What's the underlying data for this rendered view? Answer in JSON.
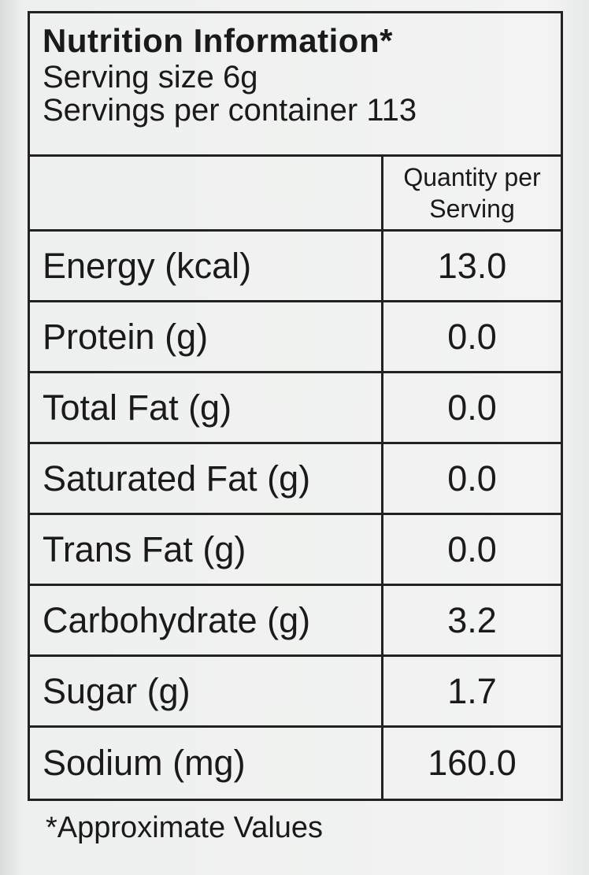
{
  "header": {
    "title": "Nutrition Information*",
    "serving_size": "Serving size 6g",
    "servings": "Servings per container 113"
  },
  "table": {
    "column_header": "Quantity per Serving",
    "rows": [
      [
        "Energy (kcal)",
        "13.0"
      ],
      [
        "Protein (g)",
        "0.0"
      ],
      [
        "Total Fat (g)",
        "0.0"
      ],
      [
        "Saturated Fat (g)",
        "0.0"
      ],
      [
        "Trans Fat (g)",
        "0.0"
      ],
      [
        "Carbohydrate (g)",
        "3.2"
      ],
      [
        "Sugar (g)",
        "1.7"
      ],
      [
        "Sodium (mg)",
        "160.0"
      ]
    ]
  },
  "footnote": "*Approximate Values"
}
